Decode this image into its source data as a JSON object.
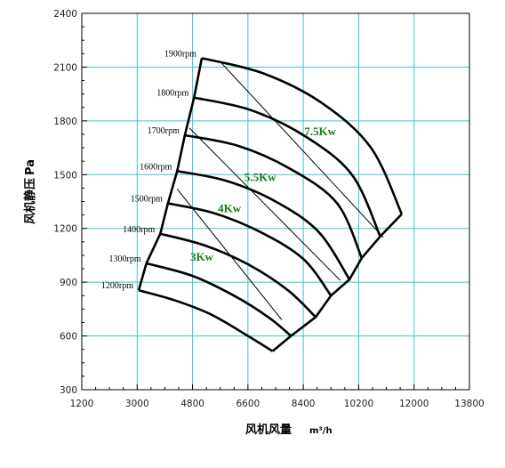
{
  "chart_data": {
    "type": "line",
    "xlabel": "风机风量",
    "xunit": "m³/h",
    "ylabel": "风机静压",
    "yunit": "Pa",
    "xlim": [
      1200,
      13800
    ],
    "ylim": [
      300,
      2400
    ],
    "xticks": [
      1200,
      3000,
      4800,
      6600,
      8400,
      10200,
      12000,
      13800
    ],
    "yticks": [
      300,
      600,
      900,
      1200,
      1500,
      1800,
      2100,
      2400
    ],
    "grid": true,
    "colors": {
      "grid": "#3cc8c8",
      "curve": "#000000",
      "power_label": "#1a7a1a",
      "axis": "#000000"
    },
    "series": [
      {
        "name": "1200rpm",
        "points": [
          [
            3050,
            855
          ],
          [
            4200,
            800
          ],
          [
            5400,
            720
          ],
          [
            6600,
            600
          ],
          [
            7400,
            515
          ]
        ]
      },
      {
        "name": "1300rpm",
        "points": [
          [
            3300,
            1005
          ],
          [
            4800,
            935
          ],
          [
            6200,
            820
          ],
          [
            7300,
            700
          ],
          [
            8000,
            600
          ]
        ]
      },
      {
        "name": "1400rpm",
        "points": [
          [
            3750,
            1170
          ],
          [
            5200,
            1105
          ],
          [
            6600,
            1000
          ],
          [
            7900,
            855
          ],
          [
            8800,
            705
          ]
        ]
      },
      {
        "name": "1500rpm",
        "points": [
          [
            4000,
            1340
          ],
          [
            5500,
            1285
          ],
          [
            7000,
            1180
          ],
          [
            8400,
            1030
          ],
          [
            9300,
            825
          ]
        ]
      },
      {
        "name": "1600rpm",
        "points": [
          [
            4300,
            1520
          ],
          [
            5900,
            1465
          ],
          [
            7500,
            1350
          ],
          [
            8900,
            1180
          ],
          [
            9900,
            915
          ]
        ]
      },
      {
        "name": "1700rpm",
        "points": [
          [
            4550,
            1720
          ],
          [
            6300,
            1660
          ],
          [
            8000,
            1530
          ],
          [
            9500,
            1340
          ],
          [
            10300,
            1035
          ]
        ]
      },
      {
        "name": "1800rpm",
        "points": [
          [
            4850,
            1930
          ],
          [
            6700,
            1860
          ],
          [
            8500,
            1710
          ],
          [
            10000,
            1495
          ],
          [
            10900,
            1155
          ]
        ]
      },
      {
        "name": "1900rpm",
        "points": [
          [
            5100,
            2150
          ],
          [
            7100,
            2065
          ],
          [
            9000,
            1900
          ],
          [
            10600,
            1650
          ],
          [
            11600,
            1280
          ]
        ]
      }
    ],
    "rpm_labels": [
      "1200rpm",
      "1300rpm",
      "1400rpm",
      "1500rpm",
      "1600rpm",
      "1700rpm",
      "1800rpm",
      "1900rpm"
    ],
    "power_lines": [
      {
        "points": [
          [
            4300,
            1420
          ],
          [
            7700,
            690
          ]
        ]
      },
      {
        "points": [
          [
            4700,
            1760
          ],
          [
            9600,
            910
          ]
        ]
      },
      {
        "points": [
          [
            5700,
            2130
          ],
          [
            11000,
            1150
          ]
        ]
      }
    ],
    "power_labels": [
      {
        "text": "3Kw",
        "x": 5100,
        "y": 1020
      },
      {
        "text": "4Kw",
        "x": 6000,
        "y": 1290
      },
      {
        "text": "5.5Kw",
        "x": 7000,
        "y": 1465
      },
      {
        "text": "7.5Kw",
        "x": 8950,
        "y": 1720
      }
    ]
  }
}
